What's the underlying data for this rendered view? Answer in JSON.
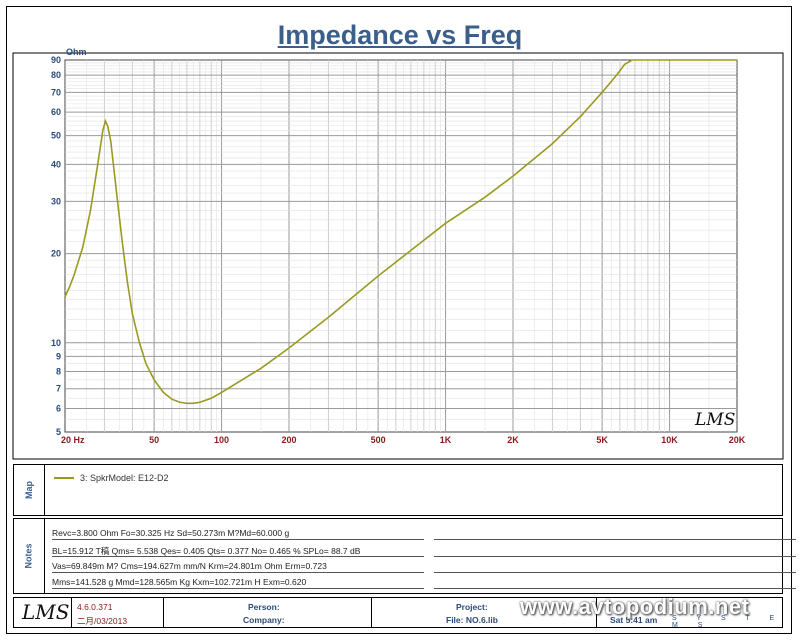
{
  "chart_data": {
    "type": "line",
    "title": "Impedance vs Freq",
    "ylabel": "Ohm",
    "xscale": "log",
    "yscale": "log",
    "xlim": [
      20,
      20000
    ],
    "ylim": [
      5,
      90
    ],
    "x_tick_labels": [
      {
        "v": 20,
        "t": "20  Hz"
      },
      {
        "v": 50,
        "t": "50"
      },
      {
        "v": 100,
        "t": "100"
      },
      {
        "v": 200,
        "t": "200"
      },
      {
        "v": 500,
        "t": "500"
      },
      {
        "v": 1000,
        "t": "1K"
      },
      {
        "v": 2000,
        "t": "2K"
      },
      {
        "v": 5000,
        "t": "5K"
      },
      {
        "v": 10000,
        "t": "10K"
      },
      {
        "v": 20000,
        "t": "20K"
      }
    ],
    "y_ticks": [
      5,
      6,
      7,
      8,
      9,
      10,
      20,
      30,
      40,
      50,
      60,
      70,
      80,
      90
    ],
    "grid": true,
    "watermark": "LMS",
    "series": [
      {
        "color": "#9a9a20",
        "points": [
          [
            20,
            14.3
          ],
          [
            21,
            15.5
          ],
          [
            22,
            17.0
          ],
          [
            24,
            21.0
          ],
          [
            26,
            28.0
          ],
          [
            28,
            40.0
          ],
          [
            29.5,
            52.0
          ],
          [
            30.3,
            56.0
          ],
          [
            31,
            54.0
          ],
          [
            32,
            48.0
          ],
          [
            34,
            32.0
          ],
          [
            36,
            22.0
          ],
          [
            38,
            16.0
          ],
          [
            40,
            12.5
          ],
          [
            43,
            10.0
          ],
          [
            46,
            8.5
          ],
          [
            50,
            7.5
          ],
          [
            55,
            6.8
          ],
          [
            60,
            6.45
          ],
          [
            65,
            6.3
          ],
          [
            70,
            6.25
          ],
          [
            75,
            6.25
          ],
          [
            80,
            6.3
          ],
          [
            90,
            6.5
          ],
          [
            100,
            6.8
          ],
          [
            120,
            7.4
          ],
          [
            150,
            8.2
          ],
          [
            200,
            9.6
          ],
          [
            300,
            12.2
          ],
          [
            500,
            16.8
          ],
          [
            700,
            20.5
          ],
          [
            1000,
            25.3
          ],
          [
            1500,
            31.0
          ],
          [
            2000,
            36.5
          ],
          [
            3000,
            47.0
          ],
          [
            4000,
            58.0
          ],
          [
            5000,
            70.0
          ],
          [
            5800,
            80.0
          ],
          [
            6300,
            87.0
          ],
          [
            6800,
            90.0
          ],
          [
            20000,
            90.0
          ]
        ]
      }
    ]
  },
  "map": {
    "label": "Map",
    "entry": "3:  SpkrModel: E12-D2"
  },
  "notes": {
    "label": "Notes",
    "rows": [
      "Revc=3.800 Ohm  Fo=30.325 Hz  Sd=50.273m M?Md=60.000 g",
      "BL=15.912 T稿  Qms= 5.538  Qes= 0.405  Qts= 0.377  No= 0.465 %  SPLo= 88.7 dB",
      "Vas=69.849m M? Cms=194.627m mm/N  Krm=24.801m Ohm  Erm=0.723",
      "Mms=141.528 g  Mmd=128.565m Kg  Kxm=102.721m H  Exm=0.620"
    ]
  },
  "footer": {
    "logo": "LMS",
    "version": "4.6.0.371",
    "date": "二月/03/2013",
    "person_label": "Person:",
    "company_label": "Company:",
    "project_label": "Project:",
    "file_label": "File: NO.6.lib",
    "time_fragment": "Sat  5:41 am",
    "systems": "S Y S T E M S",
    "watermark_site": "www.avtopodium.net"
  }
}
